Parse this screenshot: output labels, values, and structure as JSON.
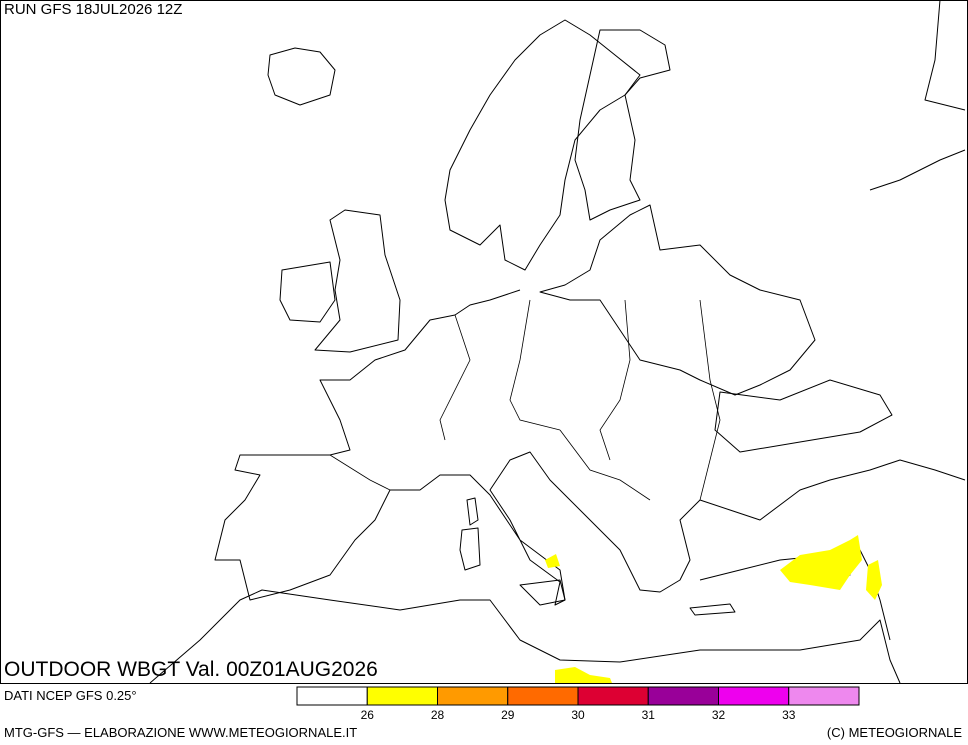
{
  "header": "RUN GFS 18JUL2026 12Z",
  "map_title": "OUTDOOR WBGT Val. 00Z01AUG2026",
  "source": "DATI NCEP GFS 0.25°",
  "footer_left": "MTG-GFS — ELABORAZIONE WWW.METEOGIORNALE.IT",
  "footer_right": "(C) METEOGIORNALE",
  "legend": {
    "colors": [
      "#ffffff",
      "#ffff00",
      "#ff9a00",
      "#ff6a00",
      "#dd0033",
      "#990099",
      "#ee00ee",
      "#ee88ee"
    ],
    "ticks": [
      26,
      28,
      29,
      30,
      31,
      32,
      33
    ]
  }
}
